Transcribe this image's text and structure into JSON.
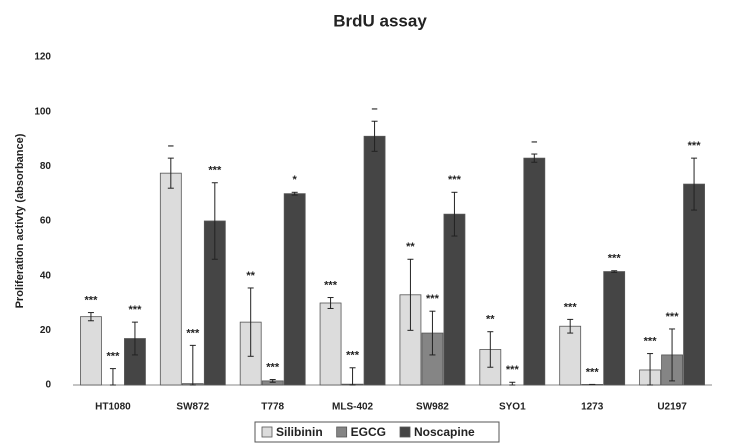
{
  "chart_data": {
    "type": "bar",
    "title": "BrdU assay",
    "y_label": "Proliferation activty (absorbance)",
    "categories": [
      "HT1080",
      "SW872",
      "T778",
      "MLS-402",
      "SW982",
      "SYO1",
      "1273",
      "U2197"
    ],
    "series": [
      {
        "name": "Silibinin",
        "color": "#dcdcdc",
        "values": [
          25,
          77.5,
          23,
          30,
          33,
          13,
          21.5,
          5.5
        ],
        "errors": [
          1.5,
          5.5,
          12.5,
          2,
          13,
          6.5,
          2.5,
          6
        ],
        "significance": [
          "***",
          "–",
          "**",
          "***",
          "**",
          "**",
          "***",
          "***"
        ]
      },
      {
        "name": "EGCG",
        "color": "#858585",
        "values": [
          0,
          0.5,
          1.5,
          0.3,
          19,
          0,
          0.2,
          11
        ],
        "errors": [
          6,
          14,
          0.5,
          6,
          8,
          1,
          0,
          9.5
        ],
        "significance": [
          "***",
          "***",
          "***",
          "***",
          "***",
          "***",
          "***",
          "***"
        ]
      },
      {
        "name": "Noscapine",
        "color": "#454545",
        "values": [
          17,
          60,
          70,
          91,
          62.5,
          83,
          41.5,
          73.5
        ],
        "errors": [
          6,
          14,
          0.5,
          5.5,
          8,
          1.5,
          0.3,
          9.5
        ],
        "significance": [
          "***",
          "***",
          "*",
          "–",
          "***",
          "–",
          "***",
          "***"
        ]
      }
    ],
    "ylim": [
      0,
      120
    ],
    "yticks": [
      0,
      20,
      40,
      60,
      80,
      100,
      120
    ],
    "grid": false,
    "legend": "bottom"
  }
}
